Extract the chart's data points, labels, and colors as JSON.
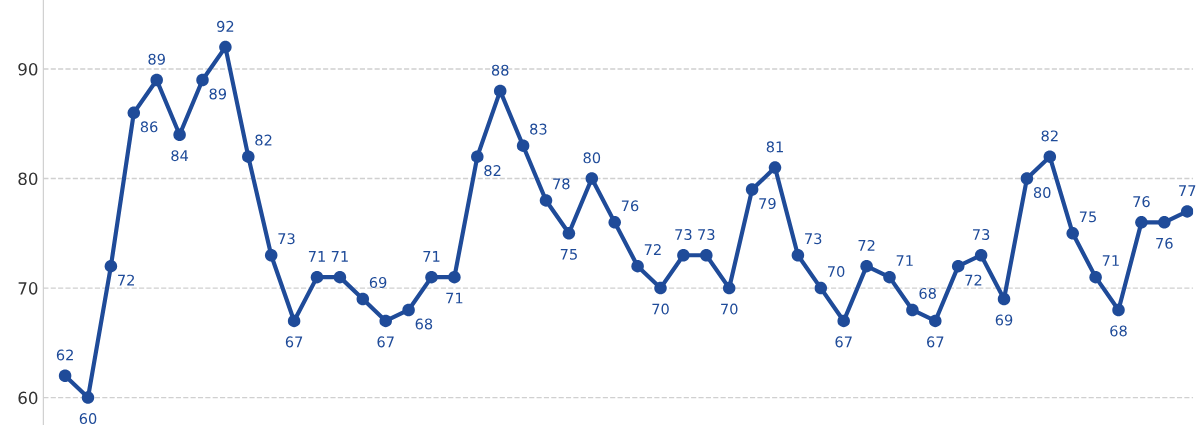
{
  "chart_data": {
    "type": "line",
    "categories": [
      null,
      null,
      null,
      null,
      null,
      null,
      null,
      null,
      null,
      null,
      null,
      null,
      null,
      null,
      null,
      null,
      null,
      null,
      null,
      null,
      null,
      null,
      null,
      null,
      null,
      null,
      null,
      null,
      null,
      null,
      null,
      null,
      null,
      null,
      null,
      null,
      null,
      null,
      null,
      null,
      null,
      null,
      null,
      null,
      null,
      null,
      null,
      null,
      null,
      null
    ],
    "series": [
      {
        "color": "#1f4b99",
        "values": [
          62,
          60,
          72,
          86,
          89,
          84,
          89,
          92,
          82,
          73,
          67,
          71,
          71,
          69,
          67,
          68,
          71,
          71,
          82,
          88,
          83,
          78,
          75,
          80,
          76,
          72,
          70,
          73,
          73,
          70,
          79,
          81,
          73,
          70,
          67,
          72,
          71,
          68,
          67,
          72,
          73,
          69,
          80,
          82,
          75,
          71,
          68,
          76,
          76,
          77
        ]
      }
    ],
    "ylim": [
      57.5,
      96.3
    ],
    "yticks": [
      60,
      70,
      80,
      90
    ],
    "grid": "y",
    "marker": "circle",
    "line_style": "solid",
    "data_labels": true,
    "tick_labels": "y"
  }
}
